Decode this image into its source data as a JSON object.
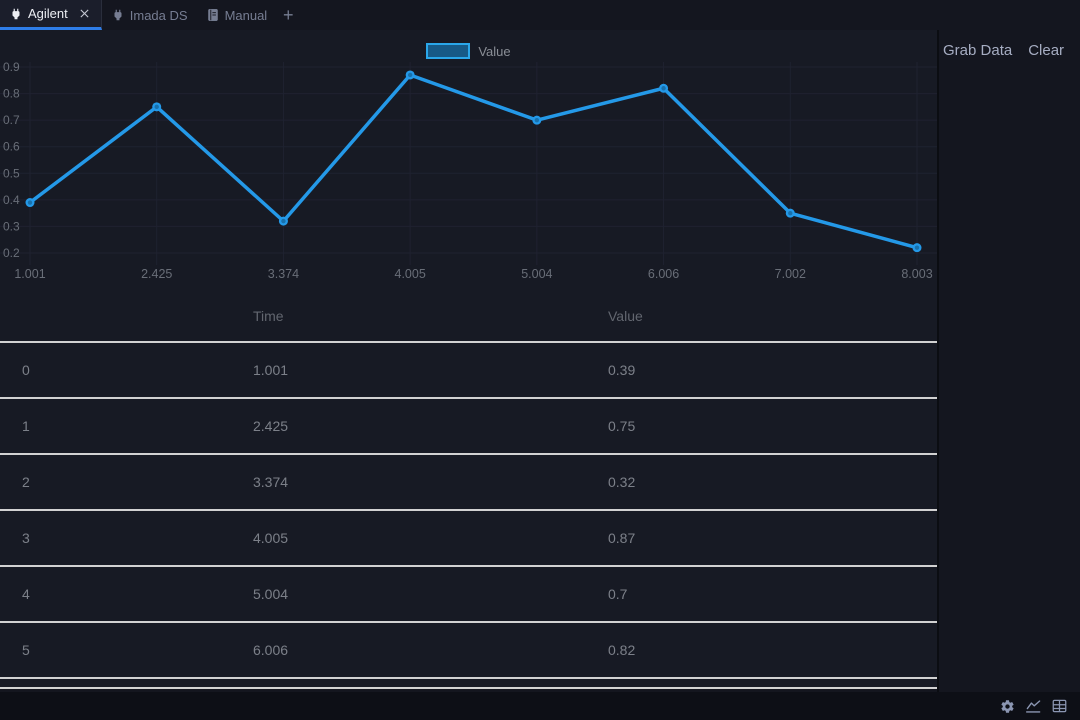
{
  "tabs": [
    {
      "label": "Agilent",
      "icon": "plug-icon",
      "active": true,
      "closable": true
    },
    {
      "label": "Imada DS",
      "icon": "plug-icon",
      "active": false,
      "closable": false
    },
    {
      "label": "Manual",
      "icon": "book-icon",
      "active": false,
      "closable": false
    }
  ],
  "tabbar": {
    "new_tab_label": "+"
  },
  "actions": {
    "grab_data": "Grab Data",
    "clear": "Clear"
  },
  "chart_data": {
    "type": "line",
    "title": "",
    "series_label": "Value",
    "x": [
      "1.001",
      "2.425",
      "3.374",
      "4.005",
      "5.004",
      "6.006",
      "7.002",
      "8.003"
    ],
    "values": [
      0.39,
      0.75,
      0.32,
      0.87,
      0.7,
      0.82,
      0.35,
      0.22
    ],
    "xlabel": "",
    "ylabel": "",
    "ylim": [
      0.2,
      0.9
    ],
    "yticks": [
      0.2,
      0.3,
      0.4,
      0.5,
      0.6,
      0.7,
      0.8,
      0.9
    ],
    "grid": true,
    "legend_position": "top-center"
  },
  "table": {
    "headers": [
      "",
      "Time",
      "Value"
    ],
    "rows": [
      [
        "0",
        "1.001",
        "0.39"
      ],
      [
        "1",
        "2.425",
        "0.75"
      ],
      [
        "2",
        "3.374",
        "0.32"
      ],
      [
        "3",
        "4.005",
        "0.87"
      ],
      [
        "4",
        "5.004",
        "0.7"
      ],
      [
        "5",
        "6.006",
        "0.82"
      ]
    ]
  },
  "statusbar": {
    "icons": [
      "settings-icon",
      "line-chart-icon",
      "table-icon"
    ]
  },
  "colors": {
    "line": "#2499e8",
    "marker_inner": "#1871ad",
    "legend_border": "#2aa7ea",
    "legend_fill": "#175a87",
    "grid": "#1f2230",
    "axis_text": "#696e78",
    "active_tab_underline": "#2e7de8",
    "row_separator": "#d2d2d2"
  }
}
